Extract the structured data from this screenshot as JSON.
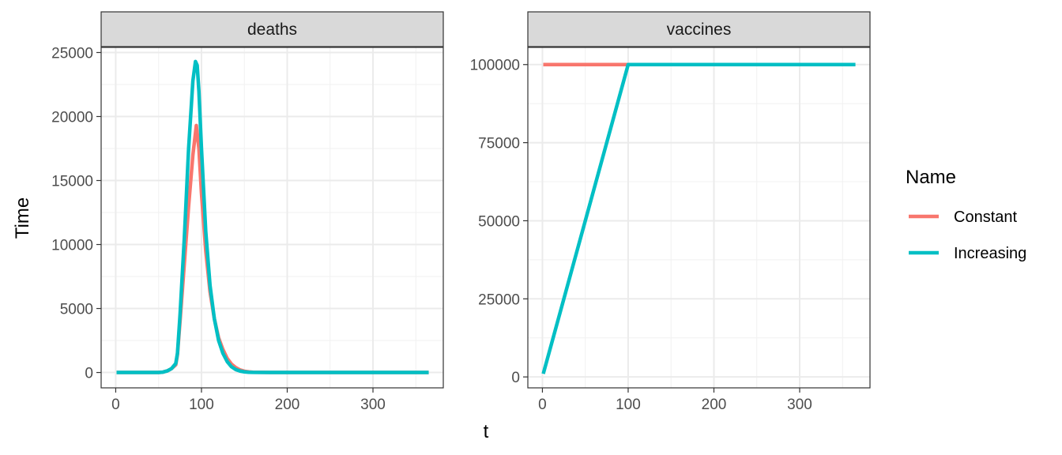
{
  "chart_data": {
    "type": "line",
    "xlabel": "t",
    "ylabel": "Time",
    "grid": true,
    "legend": {
      "title": "Name",
      "position": "right",
      "entries": [
        {
          "name": "Constant",
          "color": "#F8766D"
        },
        {
          "name": "Increasing",
          "color": "#00BFC4"
        }
      ]
    },
    "panels": [
      {
        "strip": "deaths",
        "xlim": [
          -17,
          382
        ],
        "ylim": [
          -1200,
          25400
        ],
        "x_ticks": [
          0,
          100,
          200,
          300
        ],
        "y_ticks": [
          0,
          5000,
          10000,
          15000,
          20000,
          25000
        ],
        "series": [
          {
            "name": "Constant",
            "x": [
              1,
              30,
              50,
              55,
              60,
              65,
              70,
              72,
              75,
              80,
              85,
              90,
              94,
              97,
              100,
              105,
              110,
              115,
              120,
              125,
              130,
              135,
              140,
              145,
              150,
              155,
              160,
              180,
              250,
              365
            ],
            "y": [
              0,
              0,
              5,
              30,
              120,
              300,
              600,
              1400,
              4000,
              8500,
              13000,
              17000,
              19300,
              17500,
              14000,
              9500,
              6300,
              4200,
              2700,
              1800,
              1100,
              650,
              380,
              200,
              100,
              50,
              20,
              3,
              0,
              0
            ]
          },
          {
            "name": "Increasing",
            "x": [
              1,
              30,
              50,
              55,
              60,
              65,
              70,
              72,
              75,
              80,
              85,
              90,
              93,
              95,
              97,
              100,
              105,
              110,
              115,
              120,
              125,
              130,
              135,
              140,
              145,
              150,
              155,
              160,
              180,
              250,
              365
            ],
            "y": [
              0,
              0,
              5,
              30,
              120,
              300,
              700,
              1500,
              4500,
              10500,
              17500,
              22800,
              24300,
              24000,
              22000,
              17500,
              11000,
              6800,
              4200,
              2500,
              1500,
              850,
              450,
              230,
              110,
              50,
              20,
              8,
              1,
              0,
              0
            ]
          }
        ]
      },
      {
        "strip": "vaccines",
        "xlim": [
          -17,
          382
        ],
        "ylim": [
          -3500,
          105500
        ],
        "x_ticks": [
          0,
          100,
          200,
          300
        ],
        "y_ticks": [
          0,
          25000,
          50000,
          75000,
          100000
        ],
        "series": [
          {
            "name": "Constant",
            "x": [
              1,
              365
            ],
            "y": [
              100000,
              100000
            ]
          },
          {
            "name": "Increasing",
            "x": [
              1,
              100,
              365
            ],
            "y": [
              1000,
              100000,
              100000
            ]
          }
        ]
      }
    ]
  }
}
